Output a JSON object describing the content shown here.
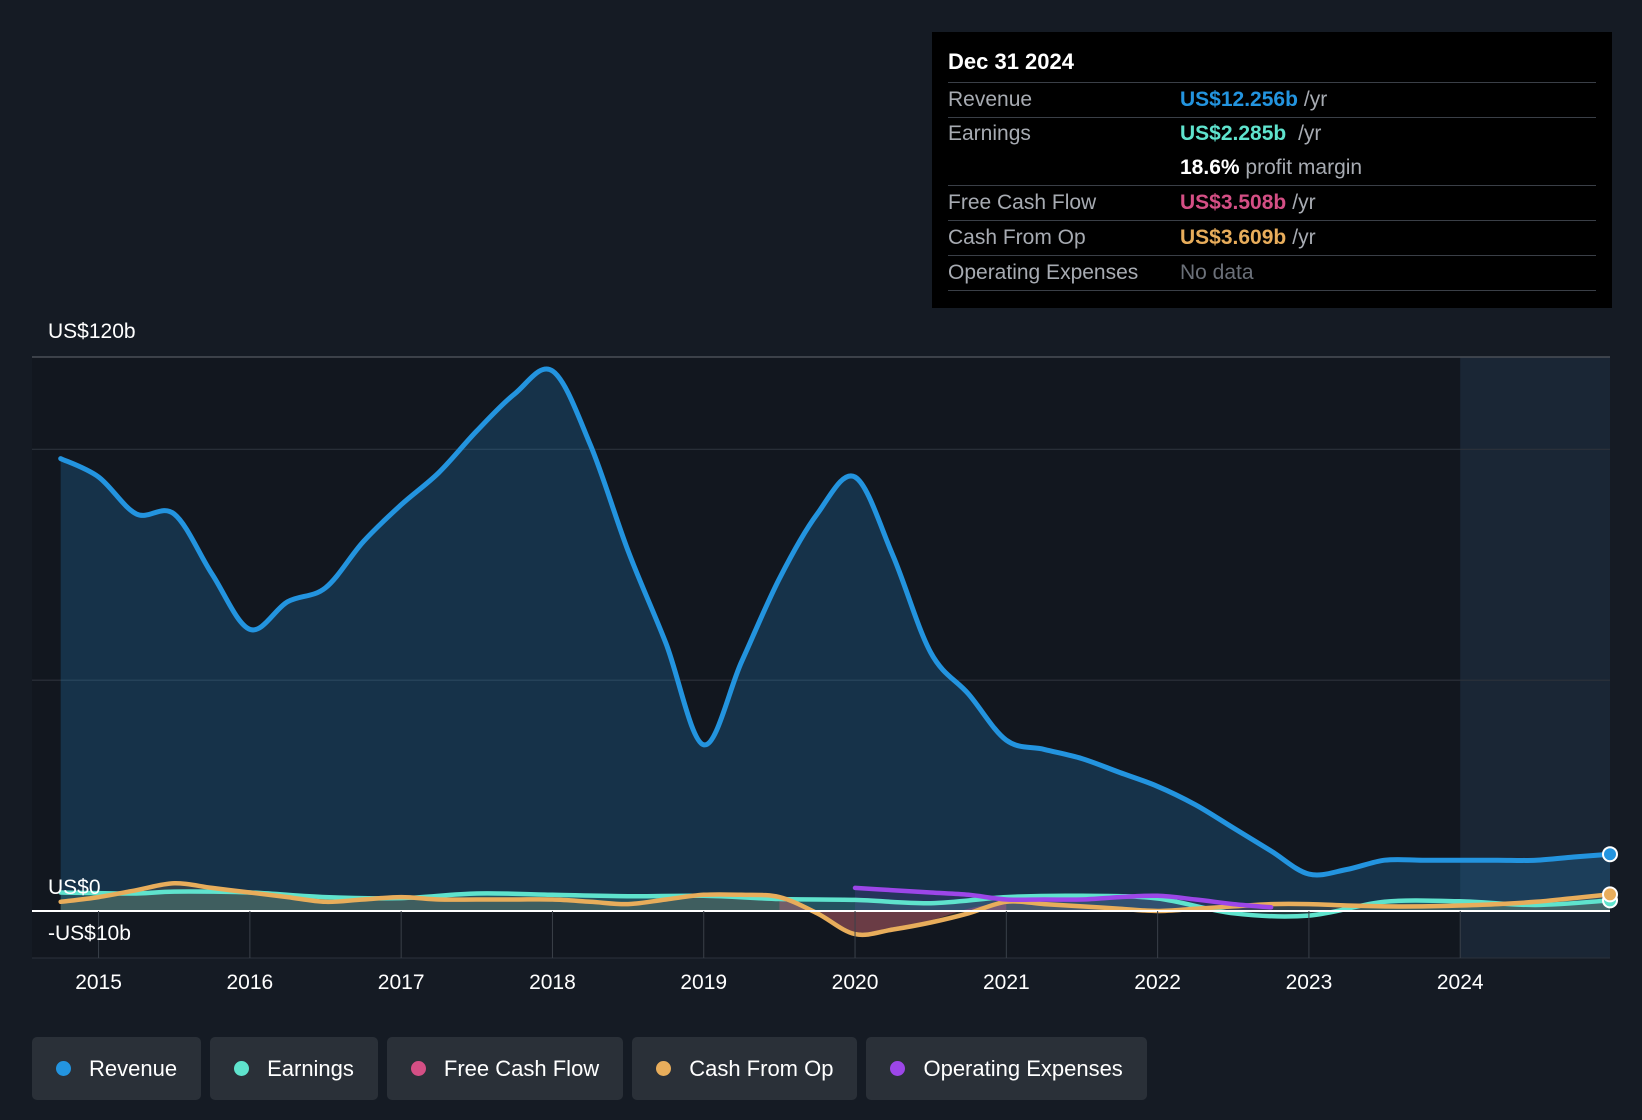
{
  "colors": {
    "revenue": "#2394df",
    "earnings": "#5fe3cd",
    "free_cash_flow": "#d44f85",
    "cash_from_op": "#e8ad5b",
    "operating_expenses": "#9c46e8"
  },
  "tooltip": {
    "date": "Dec 31 2024",
    "rows": [
      {
        "label": "Revenue",
        "value": "US$12.256b",
        "unit": "/yr"
      },
      {
        "label": "Earnings",
        "value": "US$2.285b",
        "unit": "/yr"
      },
      {
        "label": "Free Cash Flow",
        "value": "US$3.508b",
        "unit": "/yr"
      },
      {
        "label": "Cash From Op",
        "value": "US$3.609b",
        "unit": "/yr"
      },
      {
        "label": "Operating Expenses",
        "value": "No data",
        "unit": ""
      }
    ],
    "margin_value": "18.6%",
    "margin_label": "profit margin"
  },
  "axis": {
    "top_label": "US$120b",
    "zero_label": "US$0",
    "bottom_label": "-US$10b"
  },
  "legend": [
    {
      "label": "Revenue",
      "key": "revenue"
    },
    {
      "label": "Earnings",
      "key": "earnings"
    },
    {
      "label": "Free Cash Flow",
      "key": "free_cash_flow"
    },
    {
      "label": "Cash From Op",
      "key": "cash_from_op"
    },
    {
      "label": "Operating Expenses",
      "key": "operating_expenses"
    }
  ],
  "chart_data": {
    "type": "line",
    "title": "",
    "xlabel": "",
    "ylabel": "",
    "ylim": [
      -10,
      120
    ],
    "xlim": [
      2014.56,
      2024.99
    ],
    "x_ticks": [
      2015,
      2016,
      2017,
      2018,
      2019,
      2020,
      2021,
      2022,
      2023,
      2024
    ],
    "x_tick_labels": [
      "2015",
      "2016",
      "2017",
      "2018",
      "2019",
      "2020",
      "2021",
      "2022",
      "2023",
      "2024"
    ],
    "gridlines": [
      120,
      100,
      50,
      0
    ],
    "highlight_from": 2024.0,
    "series": [
      {
        "name": "Revenue",
        "key": "revenue",
        "x": [
          2014.75,
          2015.0,
          2015.25,
          2015.5,
          2015.75,
          2016.0,
          2016.25,
          2016.5,
          2016.75,
          2017.0,
          2017.25,
          2017.5,
          2017.75,
          2018.0,
          2018.25,
          2018.5,
          2018.75,
          2019.0,
          2019.25,
          2019.5,
          2019.75,
          2020.0,
          2020.25,
          2020.5,
          2020.75,
          2021.0,
          2021.25,
          2021.5,
          2021.75,
          2022.0,
          2022.25,
          2022.5,
          2022.75,
          2023.0,
          2023.25,
          2023.5,
          2023.75,
          2024.0,
          2024.25,
          2024.5,
          2024.75,
          2024.99
        ],
        "values": [
          98,
          94,
          86,
          86,
          73,
          61,
          67,
          70,
          80,
          88,
          95,
          104,
          112,
          117,
          101,
          78,
          58,
          36,
          54,
          72,
          86,
          94,
          77,
          56,
          47,
          37,
          35,
          33,
          30,
          27,
          23,
          18,
          13,
          8,
          9,
          11,
          11,
          11,
          11,
          11,
          11.7,
          12.3
        ]
      },
      {
        "name": "Earnings",
        "key": "earnings",
        "x": [
          2014.75,
          2015.25,
          2015.5,
          2016.0,
          2016.5,
          2017.0,
          2017.5,
          2018.0,
          2018.5,
          2019.0,
          2019.5,
          2020.0,
          2020.5,
          2021.0,
          2021.5,
          2022.0,
          2022.5,
          2023.0,
          2023.5,
          2024.0,
          2024.5,
          2024.99
        ],
        "values": [
          4,
          3.8,
          4.2,
          4,
          3,
          2.8,
          3.8,
          3.5,
          3.2,
          3.3,
          2.6,
          2.4,
          1.7,
          3,
          3.3,
          2.7,
          -0.5,
          -1,
          2,
          2.1,
          1.3,
          2.3
        ]
      },
      {
        "name": "Free Cash Flow",
        "key": "free_cash_flow",
        "x": [
          2019.5,
          2019.75,
          2020.0,
          2020.25,
          2020.5,
          2020.75,
          2021.0
        ],
        "values": [
          2.4,
          0,
          -4.5,
          -3.5,
          -2,
          0.5,
          2
        ]
      },
      {
        "name": "Cash From Op",
        "key": "cash_from_op",
        "x": [
          2014.75,
          2015.0,
          2015.25,
          2015.5,
          2015.75,
          2016.0,
          2016.25,
          2016.5,
          2016.75,
          2017.0,
          2017.25,
          2017.5,
          2017.75,
          2018.0,
          2018.25,
          2018.5,
          2018.75,
          2019.0,
          2019.25,
          2019.5,
          2019.75,
          2020.0,
          2020.25,
          2020.5,
          2020.75,
          2021.0,
          2021.25,
          2021.5,
          2021.75,
          2022.0,
          2022.25,
          2022.5,
          2022.75,
          2023.0,
          2023.25,
          2023.5,
          2023.75,
          2024.0,
          2024.25,
          2024.5,
          2024.75,
          2024.99
        ],
        "values": [
          2,
          3,
          4.5,
          6,
          5,
          4,
          3,
          2,
          2.5,
          3,
          2.5,
          2.5,
          2.5,
          2.5,
          2,
          1.5,
          2.5,
          3.5,
          3.5,
          3,
          -0.5,
          -5,
          -4,
          -2.5,
          -0.5,
          2,
          1.5,
          1,
          0.5,
          0,
          0.5,
          1,
          1.5,
          1.5,
          1.2,
          1,
          1,
          1.2,
          1.5,
          2,
          2.8,
          3.6
        ]
      },
      {
        "name": "Operating Expenses",
        "key": "operating_expenses",
        "x": [
          2020.0,
          2020.25,
          2020.5,
          2020.75,
          2021.0,
          2021.25,
          2021.5,
          2021.75,
          2022.0,
          2022.25,
          2022.5,
          2022.75
        ],
        "values": [
          5,
          4.5,
          4,
          3.5,
          2.5,
          2.5,
          2.5,
          3,
          3.3,
          2.5,
          1.5,
          0.8
        ]
      }
    ]
  }
}
